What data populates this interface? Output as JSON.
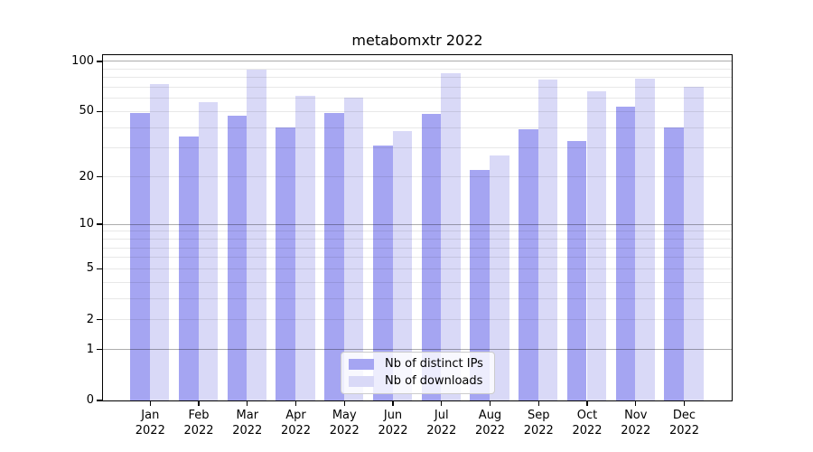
{
  "figure": {
    "title": "metabomxtr 2022",
    "background": "#ffffff"
  },
  "axes": {
    "months": [
      "Jan",
      "Feb",
      "Mar",
      "Apr",
      "May",
      "Jun",
      "Jul",
      "Aug",
      "Sep",
      "Oct",
      "Nov",
      "Dec"
    ],
    "year": "2022",
    "yticks": [
      0,
      1,
      2,
      5,
      10,
      20,
      50,
      100
    ],
    "major_grid_values": [
      1,
      10,
      100
    ],
    "minor_grid_values": [
      2,
      3,
      4,
      5,
      6,
      7,
      8,
      9,
      20,
      30,
      40,
      50,
      60,
      70,
      80,
      90
    ]
  },
  "legend": {
    "items": [
      {
        "label": "Nb of distinct IPs",
        "color": "#a5a5f2"
      },
      {
        "label": "Nb of downloads",
        "color": "#d9d9f7"
      }
    ]
  },
  "chart_data": {
    "type": "bar",
    "title": "metabomxtr 2022",
    "categories": [
      "Jan 2022",
      "Feb 2022",
      "Mar 2022",
      "Apr 2022",
      "May 2022",
      "Jun 2022",
      "Jul 2022",
      "Aug 2022",
      "Sep 2022",
      "Oct 2022",
      "Nov 2022",
      "Dec 2022"
    ],
    "series": [
      {
        "name": "Nb of distinct IPs",
        "color": "#a5a5f2",
        "values": [
          49,
          35,
          47,
          40,
          49,
          31,
          48,
          22,
          39,
          33,
          53,
          40
        ]
      },
      {
        "name": "Nb of downloads",
        "color": "#d9d9f7",
        "values": [
          73,
          57,
          89,
          62,
          60,
          38,
          85,
          27,
          77,
          66,
          78,
          70
        ]
      }
    ],
    "xlabel": "",
    "ylabel": "",
    "yscale": "log1p",
    "yticks": [
      0,
      1,
      2,
      5,
      10,
      20,
      50,
      100
    ],
    "ylim": [
      0,
      110
    ],
    "grid": "horizontal major+minor",
    "legend_position": "lower center inside plot"
  },
  "colors": {
    "axis_frame": "#000000",
    "major_grid": "rgba(0,0,0,0.32)",
    "minor_grid": "rgba(0,0,0,0.09)",
    "text": "#000000",
    "legend_border": "#cccccc",
    "legend_background": "rgba(255,255,255,0.8)"
  }
}
